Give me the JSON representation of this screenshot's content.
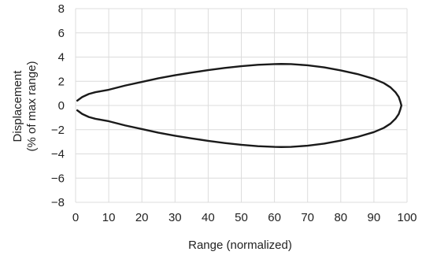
{
  "chart_data": {
    "type": "line",
    "title": "",
    "xlabel": "Range (normalized)",
    "ylabel_lines": [
      "Displacement",
      "(% of max range)"
    ],
    "xlim": [
      0,
      100
    ],
    "ylim": [
      -8,
      8
    ],
    "xticks": [
      0,
      10,
      20,
      30,
      40,
      50,
      60,
      70,
      80,
      90,
      100
    ],
    "yticks": [
      -8,
      -6,
      -4,
      -2,
      0,
      2,
      4,
      6,
      8
    ],
    "ytick_labels": [
      "−8",
      "−6",
      "−4",
      "−2",
      "0",
      "2",
      "4",
      "6",
      "8"
    ],
    "grid": true,
    "series": [
      {
        "color": "#1a1a1a",
        "x": [
          0.5,
          2,
          4,
          6,
          8,
          10,
          15,
          20,
          25,
          30,
          35,
          40,
          45,
          50,
          55,
          60,
          62,
          65,
          70,
          75,
          80,
          85,
          90,
          93,
          95,
          96.5,
          97.5,
          98,
          98.3,
          98,
          97.5,
          96.5,
          95,
          93,
          90,
          85,
          80,
          75,
          70,
          65,
          62,
          60,
          55,
          50,
          45,
          40,
          35,
          30,
          25,
          20,
          15,
          10,
          8,
          6,
          4,
          2,
          0.5
        ],
        "y": [
          0.4,
          0.7,
          0.95,
          1.1,
          1.2,
          1.3,
          1.65,
          1.95,
          2.25,
          2.5,
          2.72,
          2.92,
          3.1,
          3.25,
          3.36,
          3.42,
          3.43,
          3.42,
          3.32,
          3.15,
          2.9,
          2.6,
          2.2,
          1.85,
          1.5,
          1.1,
          0.7,
          0.3,
          0,
          -0.3,
          -0.7,
          -1.1,
          -1.5,
          -1.85,
          -2.2,
          -2.6,
          -2.9,
          -3.15,
          -3.32,
          -3.42,
          -3.43,
          -3.42,
          -3.36,
          -3.25,
          -3.1,
          -2.92,
          -2.72,
          -2.5,
          -2.25,
          -1.95,
          -1.65,
          -1.3,
          -1.2,
          -1.1,
          -0.95,
          -0.7,
          -0.4
        ]
      }
    ]
  }
}
